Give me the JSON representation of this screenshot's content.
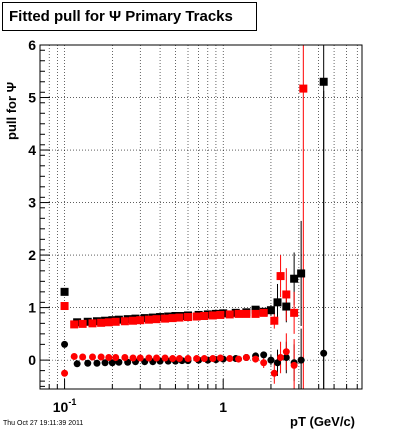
{
  "title": "Fitted pull for  Ψ   Primary Tracks",
  "footer_date": "Thu Oct 27 19:11:39 2011",
  "chart_data": {
    "type": "scatter",
    "title": "Fitted pull for  Ψ   Primary Tracks",
    "xlabel": "pT (GeV/c)",
    "ylabel": "pull for Ψ",
    "xscale": "log",
    "xlim": [
      0.07,
      7.5
    ],
    "ylim": [
      -0.55,
      6
    ],
    "grid": true,
    "x_tick_labels": [
      {
        "value": 0.1,
        "label": "10",
        "sup": "-1"
      },
      {
        "value": 1,
        "label": "1",
        "sup": ""
      }
    ],
    "y_ticks": [
      0,
      1,
      2,
      3,
      4,
      5,
      6
    ],
    "series": [
      {
        "name": "",
        "color": "#000000",
        "marker": "square",
        "x": [
          0.1,
          0.12,
          0.14,
          0.16,
          0.18,
          0.2,
          0.22,
          0.25,
          0.28,
          0.32,
          0.36,
          0.4,
          0.45,
          0.5,
          0.55,
          0.6,
          0.7,
          0.8,
          0.9,
          1.0,
          1.2,
          1.4,
          1.6,
          1.8,
          2.0,
          2.2,
          2.5,
          2.8,
          3.1,
          4.3
        ],
        "y": [
          1.3,
          0.72,
          0.73,
          0.74,
          0.75,
          0.76,
          0.77,
          0.78,
          0.79,
          0.8,
          0.81,
          0.82,
          0.83,
          0.84,
          0.84,
          0.85,
          0.86,
          0.87,
          0.88,
          0.89,
          0.9,
          0.91,
          0.96,
          0.92,
          0.95,
          1.1,
          1.02,
          1.55,
          1.65,
          5.3
        ],
        "yerr": [
          0.05,
          0.02,
          0.02,
          0.02,
          0.02,
          0.02,
          0.02,
          0.02,
          0.02,
          0.02,
          0.02,
          0.02,
          0.02,
          0.02,
          0.02,
          0.02,
          0.02,
          0.02,
          0.03,
          0.03,
          0.03,
          0.04,
          0.05,
          0.06,
          0.1,
          0.35,
          0.3,
          0.5,
          1.0,
          6.0
        ]
      },
      {
        "name": "",
        "color": "#ff0000",
        "marker": "square",
        "x": [
          0.1,
          0.115,
          0.13,
          0.15,
          0.17,
          0.19,
          0.21,
          0.24,
          0.27,
          0.3,
          0.34,
          0.38,
          0.43,
          0.48,
          0.53,
          0.6,
          0.68,
          0.76,
          0.86,
          0.96,
          1.1,
          1.25,
          1.4,
          1.6,
          1.8,
          2.1,
          2.3,
          2.5,
          2.8,
          3.2
        ],
        "y": [
          1.03,
          0.68,
          0.69,
          0.7,
          0.71,
          0.72,
          0.73,
          0.74,
          0.75,
          0.76,
          0.77,
          0.78,
          0.79,
          0.8,
          0.81,
          0.82,
          0.83,
          0.84,
          0.85,
          0.86,
          0.87,
          0.88,
          0.88,
          0.88,
          0.9,
          0.75,
          1.6,
          1.25,
          0.9,
          5.17
        ],
        "yerr": [
          0.05,
          0.02,
          0.02,
          0.02,
          0.02,
          0.02,
          0.02,
          0.02,
          0.02,
          0.02,
          0.02,
          0.02,
          0.02,
          0.02,
          0.02,
          0.02,
          0.02,
          0.02,
          0.02,
          0.03,
          0.03,
          0.04,
          0.04,
          0.05,
          0.06,
          0.15,
          0.4,
          0.5,
          0.4,
          6.0
        ]
      },
      {
        "name": "",
        "color": "#000000",
        "marker": "circle",
        "x": [
          0.1,
          0.12,
          0.14,
          0.16,
          0.18,
          0.2,
          0.22,
          0.25,
          0.28,
          0.32,
          0.36,
          0.4,
          0.45,
          0.5,
          0.55,
          0.6,
          0.7,
          0.8,
          0.9,
          1.0,
          1.2,
          1.4,
          1.6,
          1.8,
          2.0,
          2.2,
          2.5,
          2.8,
          3.1,
          4.3
        ],
        "y": [
          0.3,
          -0.07,
          -0.06,
          -0.06,
          -0.05,
          -0.05,
          -0.04,
          -0.04,
          -0.03,
          -0.03,
          -0.03,
          -0.02,
          -0.02,
          -0.02,
          -0.01,
          -0.01,
          0.0,
          0.0,
          0.01,
          0.02,
          0.03,
          0.05,
          0.08,
          0.1,
          0.0,
          -0.05,
          0.05,
          -0.05,
          0.0,
          0.13
        ],
        "yerr": [
          0.03,
          0.02,
          0.02,
          0.02,
          0.02,
          0.02,
          0.02,
          0.02,
          0.02,
          0.02,
          0.02,
          0.02,
          0.02,
          0.02,
          0.02,
          0.02,
          0.02,
          0.03,
          0.03,
          0.03,
          0.03,
          0.04,
          0.05,
          0.06,
          0.1,
          0.25,
          0.3,
          0.35,
          0.6,
          5.0
        ]
      },
      {
        "name": "",
        "color": "#ff0000",
        "marker": "circle",
        "x": [
          0.1,
          0.115,
          0.13,
          0.15,
          0.17,
          0.19,
          0.21,
          0.24,
          0.27,
          0.3,
          0.34,
          0.38,
          0.43,
          0.48,
          0.53,
          0.6,
          0.68,
          0.76,
          0.86,
          0.96,
          1.1,
          1.25,
          1.4,
          1.6,
          1.8,
          2.1,
          2.3,
          2.5,
          2.8
        ],
        "y": [
          -0.25,
          0.07,
          0.06,
          0.06,
          0.06,
          0.05,
          0.05,
          0.05,
          0.04,
          0.04,
          0.04,
          0.04,
          0.04,
          0.03,
          0.03,
          0.03,
          0.03,
          0.03,
          0.03,
          0.04,
          0.03,
          0.02,
          0.05,
          0.02,
          -0.05,
          -0.25,
          0.05,
          0.16,
          -0.1
        ],
        "yerr": [
          0.03,
          0.02,
          0.02,
          0.02,
          0.02,
          0.02,
          0.02,
          0.02,
          0.02,
          0.02,
          0.02,
          0.02,
          0.02,
          0.02,
          0.02,
          0.02,
          0.02,
          0.02,
          0.03,
          0.03,
          0.03,
          0.04,
          0.05,
          0.06,
          0.1,
          0.2,
          0.3,
          0.35,
          0.5
        ]
      }
    ]
  }
}
